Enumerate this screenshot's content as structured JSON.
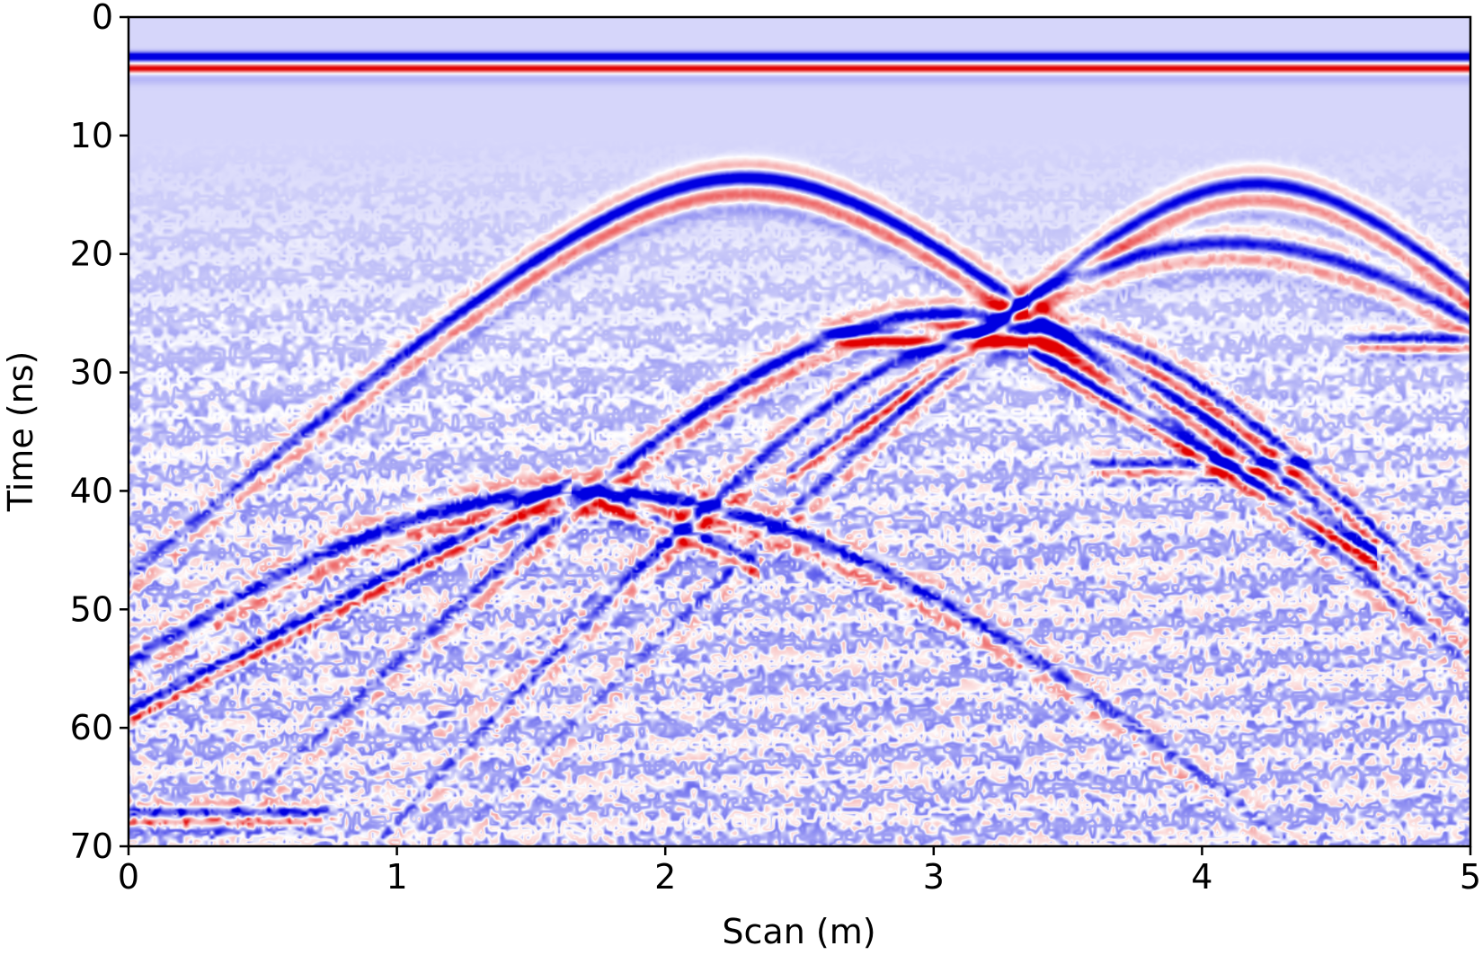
{
  "chart_data": {
    "type": "heatmap",
    "title": "",
    "xlabel": "Scan (m)",
    "ylabel": "Time (ns)",
    "xlim": [
      0,
      5
    ],
    "ylim": [
      70,
      0
    ],
    "y_axis_inverted": true,
    "x_ticks": [
      0,
      1,
      2,
      3,
      4,
      5
    ],
    "y_ticks": [
      0,
      10,
      20,
      30,
      40,
      50,
      60,
      70
    ],
    "x_tick_labels": [
      "0",
      "1",
      "2",
      "3",
      "4",
      "5"
    ],
    "y_tick_labels": [
      "0",
      "10",
      "20",
      "30",
      "40",
      "50",
      "60",
      "70"
    ],
    "colormap": "bwr",
    "colors": {
      "negative": "#0000e0",
      "neutral": "#ffffff",
      "positive": "#e00000",
      "background": "#d6d8fb"
    },
    "grid": false,
    "legend": "none",
    "direct_wave": {
      "time_ns": [
        3.3,
        4.3
      ],
      "polarity": [
        "negative",
        "positive"
      ]
    },
    "hyperbolas": [
      {
        "apex_x": 2.3,
        "apex_t": 13.5,
        "v_m_per_ns": 0.102,
        "amp": 1.0
      },
      {
        "apex_x": 4.2,
        "apex_t": 14.0,
        "v_m_per_ns": 0.088,
        "amp": 0.8
      },
      {
        "apex_x": 3.05,
        "apex_t": 25.0,
        "v_m_per_ns": 0.085,
        "amp": 0.9
      },
      {
        "apex_x": 3.35,
        "apex_t": 26.0,
        "v_m_per_ns": 0.075,
        "amp": 0.8
      },
      {
        "apex_x": 1.7,
        "apex_t": 40.0,
        "v_m_per_ns": 0.092,
        "amp": 0.85
      },
      {
        "apex_x": 4.1,
        "apex_t": 19.0,
        "v_m_per_ns": 0.105,
        "amp": 0.7
      }
    ],
    "flat_reflectors": [
      {
        "x_range": [
          2.6,
          3.3
        ],
        "t": 27.0,
        "amp": 0.9
      },
      {
        "x_range": [
          3.6,
          4.4
        ],
        "t": 38.0,
        "amp": 0.7
      },
      {
        "x_range": [
          0.0,
          0.7
        ],
        "t": 67.5,
        "amp": 0.8
      },
      {
        "x_range": [
          4.6,
          5.0
        ],
        "t": 27.5,
        "amp": 0.8
      }
    ],
    "dipping_events": [
      {
        "from": [
          0.0,
          59.0
        ],
        "to": [
          1.6,
          40.0
        ],
        "amp": 0.9
      },
      {
        "from": [
          1.8,
          41.0
        ],
        "to": [
          2.3,
          46.0
        ],
        "amp": 0.8
      },
      {
        "from": [
          2.5,
          38.0
        ],
        "to": [
          3.3,
          25.0
        ],
        "amp": 0.9
      },
      {
        "from": [
          3.4,
          29.0
        ],
        "to": [
          4.6,
          45.0
        ],
        "amp": 0.9
      }
    ]
  }
}
